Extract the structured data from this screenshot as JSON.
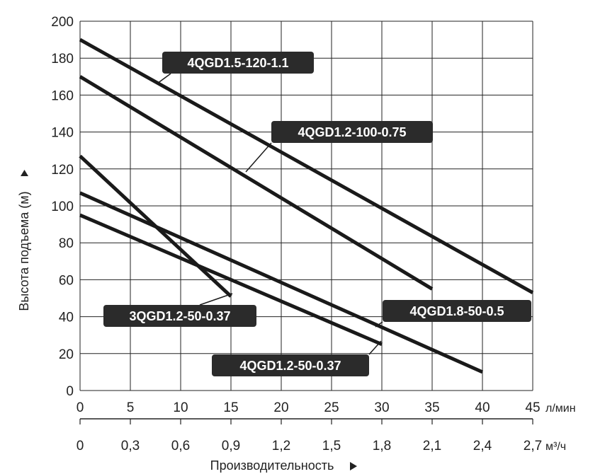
{
  "chart_data": {
    "type": "line",
    "ylabel": "Высота подъема (м)",
    "xlabel": "Производительность",
    "y_ticks": [
      "0",
      "20",
      "40",
      "60",
      "80",
      "100",
      "120",
      "140",
      "160",
      "180",
      "200"
    ],
    "x_ticks_lpm": [
      "0",
      "5",
      "10",
      "15",
      "20",
      "25",
      "30",
      "35",
      "40",
      "45"
    ],
    "x_unit_lpm": "л/мин",
    "x_ticks_m3h": [
      "0",
      "0,3",
      "0,6",
      "0,9",
      "1,2",
      "1,5",
      "1,8",
      "2,1",
      "2,4",
      "2,7"
    ],
    "x_unit_m3h": "м³/ч",
    "xlim": [
      0,
      45
    ],
    "ylim": [
      0,
      200
    ],
    "grid": true,
    "series": [
      {
        "name": "4QGD1.5-120-1.1",
        "x": [
          0,
          45
        ],
        "y": [
          190,
          53
        ]
      },
      {
        "name": "4QGD1.2-100-0.75",
        "x": [
          0,
          35
        ],
        "y": [
          170,
          55
        ]
      },
      {
        "name": "3QGD1.2-50-0.37",
        "x": [
          0,
          15
        ],
        "y": [
          127,
          51
        ]
      },
      {
        "name": "4QGD1.8-50-0.5",
        "x": [
          0,
          40
        ],
        "y": [
          107,
          10
        ]
      },
      {
        "name": "4QGD1.2-50-0.37",
        "x": [
          0,
          30
        ],
        "y": [
          95,
          25
        ]
      }
    ]
  },
  "colors": {
    "line": "#1a1a1a",
    "grid": "#222222",
    "label_bg": "#2b2b2b",
    "label_text": "#ffffff"
  }
}
